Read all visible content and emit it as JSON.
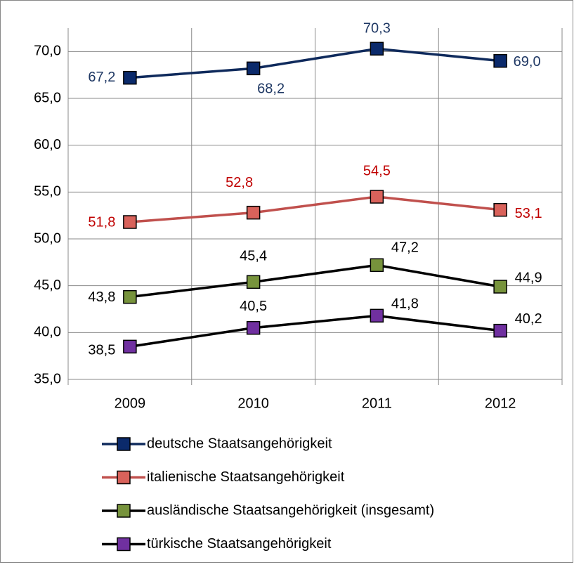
{
  "chart_data": {
    "type": "line",
    "categories": [
      "2009",
      "2010",
      "2011",
      "2012"
    ],
    "series": [
      {
        "name": "deutsche Staatsangehörigkeit",
        "color": "#0f2a5c",
        "marker_color": "#0b2a6b",
        "label_color": "#1f3864",
        "values": [
          67.2,
          68.2,
          70.3,
          69.0
        ],
        "value_labels": [
          "67,2",
          "68,2",
          "70,3",
          "69,0"
        ]
      },
      {
        "name": "italienische Staatsangehörigkeit",
        "color": "#c0504d",
        "marker_color": "#d9625b",
        "label_color": "#c00000",
        "values": [
          51.8,
          52.8,
          54.5,
          53.1
        ],
        "value_labels": [
          "51,8",
          "52,8",
          "54,5",
          "53,1"
        ]
      },
      {
        "name": "ausländische Staatsangehörigkeit (insgesamt)",
        "color": "#000000",
        "marker_color": "#77933c",
        "label_color": "#000000",
        "values": [
          43.8,
          45.4,
          47.2,
          44.9
        ],
        "value_labels": [
          "43,8",
          "45,4",
          "47,2",
          "44,9"
        ]
      },
      {
        "name": "türkische Staatsangehörigkeit",
        "color": "#000000",
        "marker_color": "#7030a0",
        "label_color": "#000000",
        "values": [
          38.5,
          40.5,
          41.8,
          40.2
        ],
        "value_labels": [
          "38,5",
          "40,5",
          "41,8",
          "40,2"
        ]
      }
    ],
    "ylim": [
      35,
      72.5
    ],
    "yticks": [
      {
        "value": 35,
        "label": "35,0"
      },
      {
        "value": 40,
        "label": "40,0"
      },
      {
        "value": 45,
        "label": "45,0"
      },
      {
        "value": 50,
        "label": "50,0"
      },
      {
        "value": 55,
        "label": "55,0"
      },
      {
        "value": 60,
        "label": "60,0"
      },
      {
        "value": 65,
        "label": "65,0"
      },
      {
        "value": 70,
        "label": "70,0"
      }
    ],
    "grid": true,
    "legend": "bottom"
  }
}
